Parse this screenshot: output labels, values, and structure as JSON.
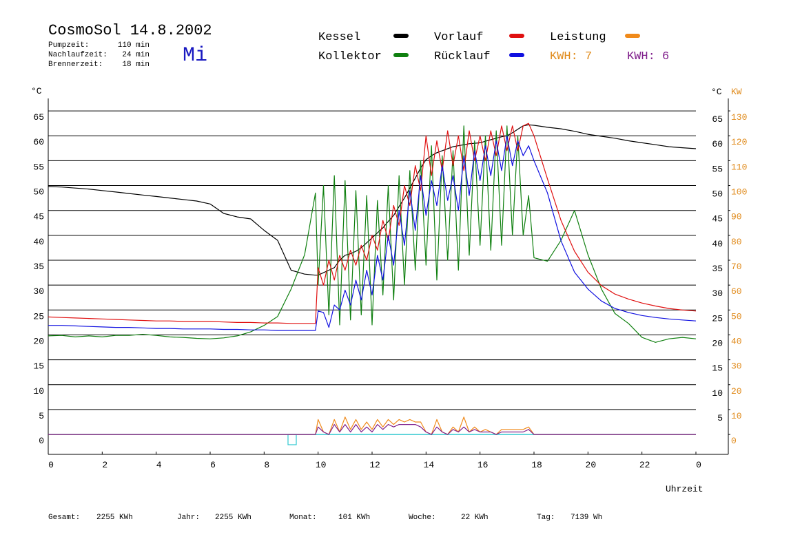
{
  "header": {
    "stats": [
      {
        "label": "Pumpzeit:",
        "value": "110 min"
      },
      {
        "label": "Nachlaufzeit:",
        "value": "24 min"
      },
      {
        "label": "Brennerzeit:",
        "value": "18 min"
      }
    ],
    "day": "Mi"
  },
  "footer": [
    {
      "label": "Gesamt:",
      "value": "2255 KWh"
    },
    {
      "label": "Jahr:",
      "value": "2255 KWh"
    },
    {
      "label": "Monat:",
      "value": "101 KWh"
    },
    {
      "label": "Woche:",
      "value": "22 KWh"
    },
    {
      "label": "Tag:",
      "value": "7139 Wh"
    }
  ],
  "chart_data": {
    "type": "line",
    "title": "CosmoSol 14.8.2002",
    "ylabel": "°C",
    "ylabel_right": "°C",
    "y2label": "KW",
    "xlabel": "Uhrzeit",
    "annotations": [
      {
        "text": "KWH: 7",
        "color": "#e08a1a"
      },
      {
        "text": "KWH: 6",
        "color": "#80208c"
      }
    ],
    "grid": true,
    "xlim": [
      0,
      25.2
    ],
    "xticks": [
      0,
      2,
      4,
      6,
      8,
      10,
      12,
      14,
      16,
      18,
      20,
      22,
      {
        "value": 24,
        "label": "0"
      }
    ],
    "ylim": [
      -4,
      67.5
    ],
    "yticks": [
      0,
      5,
      10,
      15,
      20,
      25,
      30,
      35,
      40,
      45,
      50,
      55,
      60,
      65
    ],
    "yticks_right": [
      5,
      10,
      15,
      20,
      25,
      30,
      35,
      40,
      45,
      50,
      55,
      60,
      65
    ],
    "y2lim": [
      -8,
      135
    ],
    "y2ticks": [
      0,
      10,
      20,
      30,
      40,
      50,
      60,
      70,
      80,
      90,
      100,
      110,
      120,
      130
    ],
    "x": [
      0,
      0.5,
      1,
      1.5,
      2,
      2.5,
      3,
      3.5,
      4,
      4.5,
      5,
      5.5,
      6,
      6.5,
      7,
      7.5,
      8,
      8.5,
      9,
      9.5,
      9.9,
      10,
      10.2,
      10.4,
      10.6,
      10.8,
      11,
      11.2,
      11.4,
      11.6,
      11.8,
      12,
      12.2,
      12.4,
      12.6,
      12.8,
      13,
      13.2,
      13.4,
      13.6,
      13.8,
      14,
      14.2,
      14.4,
      14.6,
      14.8,
      15,
      15.2,
      15.4,
      15.6,
      15.8,
      16,
      16.2,
      16.4,
      16.6,
      16.8,
      17,
      17.2,
      17.4,
      17.6,
      17.8,
      18,
      18.5,
      19,
      19.5,
      20,
      20.5,
      21,
      21.5,
      22,
      22.5,
      23,
      23.5,
      24
    ],
    "series": [
      {
        "name": "Kessel",
        "color": "#000000",
        "values": [
          49.8,
          49.7,
          49.5,
          49.3,
          49.0,
          48.7,
          48.4,
          48.1,
          47.8,
          47.5,
          47.2,
          46.9,
          46.3,
          44.4,
          43.7,
          43.3,
          41.0,
          39.0,
          33.0,
          32.2,
          32.0,
          32.0,
          32.5,
          33.0,
          33.5,
          35.0,
          36.0,
          36.3,
          36.8,
          37.5,
          38.5,
          39.5,
          40.5,
          41.5,
          42.8,
          44.0,
          45.8,
          47.5,
          49.5,
          51.5,
          53.5,
          55.2,
          56.0,
          56.6,
          57.0,
          57.4,
          57.8,
          58.0,
          58.2,
          58.4,
          58.5,
          58.6,
          58.9,
          59.2,
          59.5,
          59.8,
          60.0,
          60.6,
          61.3,
          62.0,
          62.2,
          62.1,
          61.7,
          61.4,
          60.9,
          60.3,
          59.9,
          59.5,
          59.0,
          58.6,
          58.2,
          57.8,
          57.6,
          57.4
        ]
      },
      {
        "name": "Kollektor",
        "color": "#108010",
        "values": [
          19.8,
          19.9,
          19.6,
          19.8,
          19.6,
          19.9,
          19.9,
          20.1,
          19.9,
          19.6,
          19.5,
          19.3,
          19.2,
          19.4,
          19.8,
          20.6,
          21.9,
          23.7,
          29.2,
          36.1,
          48.5,
          30,
          50,
          24,
          52,
          22,
          51,
          23,
          49,
          24,
          48,
          22,
          47,
          28,
          50,
          27,
          52,
          30,
          53,
          33,
          55,
          34,
          58,
          31,
          56,
          35,
          57,
          33,
          62,
          36,
          59,
          38,
          60,
          37,
          61,
          38,
          62,
          40,
          60,
          40,
          48,
          35.5,
          34.8,
          39.0,
          45.0,
          36.1,
          29.2,
          24.3,
          22.3,
          19.5,
          18.5,
          19.2,
          19.5,
          19.2
        ]
      },
      {
        "name": "Vorlauf",
        "color": "#e01010",
        "values": [
          23.6,
          23.5,
          23.4,
          23.3,
          23.2,
          23.1,
          23.0,
          22.9,
          22.8,
          22.8,
          22.7,
          22.7,
          22.7,
          22.6,
          22.5,
          22.5,
          22.4,
          22.4,
          22.3,
          22.3,
          22.3,
          33.5,
          30,
          35,
          31,
          36,
          33,
          37,
          34,
          38,
          35,
          40,
          37,
          43,
          39,
          46,
          42,
          50,
          46,
          54,
          49,
          60,
          52,
          59,
          53,
          61,
          54,
          60,
          53,
          61,
          55,
          60,
          55,
          61,
          56,
          62,
          57,
          62,
          57,
          62,
          62.5,
          60,
          51.3,
          43.0,
          36.8,
          32.6,
          29.9,
          28.2,
          27.2,
          26.4,
          25.8,
          25.3,
          25.0,
          24.8
        ]
      },
      {
        "name": "Rücklauf",
        "color": "#1010e0",
        "values": [
          21.9,
          21.9,
          21.8,
          21.7,
          21.6,
          21.5,
          21.5,
          21.4,
          21.3,
          21.3,
          21.2,
          21.2,
          21.2,
          21.1,
          21.1,
          21.0,
          21.0,
          20.9,
          20.9,
          20.9,
          20.9,
          24.8,
          24.5,
          21.5,
          26,
          25,
          29,
          26,
          31,
          27,
          33,
          28,
          36,
          31,
          40,
          34,
          45,
          38,
          49,
          41,
          52,
          44,
          51,
          46,
          54,
          47,
          52,
          45,
          56,
          48,
          57,
          51,
          58,
          52,
          59,
          53,
          60,
          54,
          59,
          56,
          58,
          55,
          48.5,
          38.9,
          32.6,
          29.2,
          26.8,
          25.3,
          24.5,
          23.9,
          23.5,
          23.2,
          23.0,
          22.8
        ]
      },
      {
        "name": "Leistung",
        "color": "#f08a1a",
        "axis": "y2",
        "values": [
          0,
          0,
          0,
          0,
          0,
          0,
          0,
          0,
          0,
          0,
          0,
          0,
          0,
          0,
          0,
          0,
          0,
          0,
          0,
          0,
          0,
          6,
          1,
          0,
          6,
          1,
          7,
          2,
          6,
          2,
          5,
          2,
          6,
          3,
          6,
          4,
          6,
          5,
          6,
          5,
          5,
          1,
          0,
          6,
          1,
          0,
          3,
          1,
          7,
          1,
          3,
          1,
          2,
          1,
          0,
          2,
          2,
          2,
          2,
          2,
          3,
          0,
          0,
          0,
          0,
          0,
          0,
          0,
          0,
          0,
          0,
          0,
          0,
          0
        ]
      },
      {
        "color": "#80208c",
        "axis": "y2",
        "values": [
          0,
          0,
          0,
          0,
          0,
          0,
          0,
          0,
          0,
          0,
          0,
          0,
          0,
          0,
          0,
          0,
          0,
          0,
          0,
          0,
          0,
          3,
          1,
          0,
          4,
          1,
          4,
          1,
          4,
          1,
          3,
          1,
          4,
          2,
          4,
          3,
          4,
          4,
          4,
          4,
          3,
          1,
          0,
          3,
          1,
          0,
          2,
          1,
          3,
          1,
          2,
          1,
          1,
          1,
          0,
          1,
          1,
          1,
          1,
          1,
          2,
          0,
          0,
          0,
          0,
          0,
          0,
          0,
          0,
          0,
          0,
          0,
          0,
          0
        ]
      }
    ]
  }
}
